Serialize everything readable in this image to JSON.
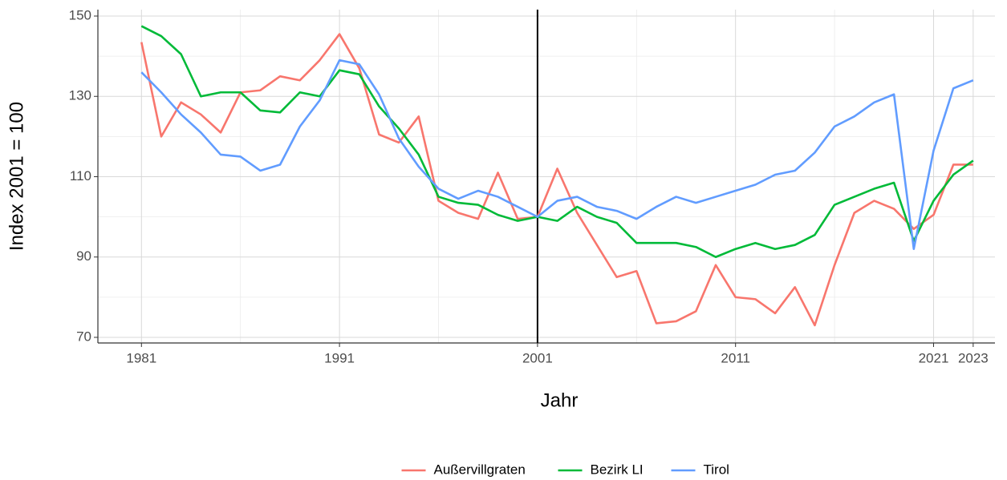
{
  "chart_data": {
    "type": "line",
    "x_label": "Jahr",
    "y_label": "Index 2001 = 100",
    "x": [
      1981,
      1982,
      1983,
      1984,
      1985,
      1986,
      1987,
      1988,
      1989,
      1990,
      1991,
      1992,
      1993,
      1994,
      1995,
      1996,
      1997,
      1998,
      1999,
      2000,
      2001,
      2002,
      2003,
      2004,
      2005,
      2006,
      2007,
      2008,
      2009,
      2010,
      2011,
      2012,
      2013,
      2014,
      2015,
      2016,
      2017,
      2018,
      2019,
      2020,
      2021,
      2022,
      2023
    ],
    "series": [
      {
        "name": "Außervillgraten",
        "color": "#f8766d",
        "values": [
          143.5,
          120,
          128.5,
          125.5,
          121,
          131,
          131.5,
          135,
          134,
          139,
          145.5,
          137,
          120.5,
          118.5,
          125,
          104,
          101,
          99.5,
          111,
          99.5,
          100,
          112,
          101,
          93,
          85,
          86.5,
          73.5,
          74,
          76.5,
          88,
          80,
          79.5,
          76,
          82.5,
          73,
          88,
          101,
          104,
          102,
          97,
          100.5,
          113,
          113
        ]
      },
      {
        "name": "Bezirk LI",
        "color": "#00ba38",
        "values": [
          147.5,
          145,
          140.5,
          130,
          131,
          131,
          126.5,
          126,
          131,
          130,
          136.5,
          135.5,
          127.5,
          122,
          115.5,
          105,
          103.5,
          103,
          100.5,
          99,
          100,
          99,
          102.5,
          100,
          98.5,
          93.5,
          93.5,
          93.5,
          92.5,
          90,
          92,
          93.5,
          92,
          93,
          95.5,
          103,
          105,
          107,
          108.5,
          94,
          104,
          110.5,
          114
        ]
      },
      {
        "name": "Tirol",
        "color": "#619cff",
        "values": [
          136,
          131,
          125.5,
          121,
          115.5,
          115,
          111.5,
          113,
          122.5,
          129,
          139,
          138,
          130.5,
          119.5,
          112.5,
          107,
          104.5,
          106.5,
          105,
          102.5,
          100,
          104,
          105,
          102.5,
          101.5,
          99.5,
          102.5,
          105,
          103.5,
          105,
          106.5,
          108,
          110.5,
          111.5,
          116,
          122.5,
          125,
          128.5,
          130.5,
          92,
          116.5,
          132,
          134
        ]
      }
    ],
    "vline": 2001,
    "xlim": [
      1978.8,
      2024.1
    ],
    "xticks": [
      1981,
      1991,
      2001,
      2011,
      2021,
      2023
    ],
    "ylim": [
      68.6,
      151.6
    ],
    "yticks": [
      70,
      90,
      110,
      130,
      150
    ],
    "grid": true,
    "legend": "bottom"
  }
}
